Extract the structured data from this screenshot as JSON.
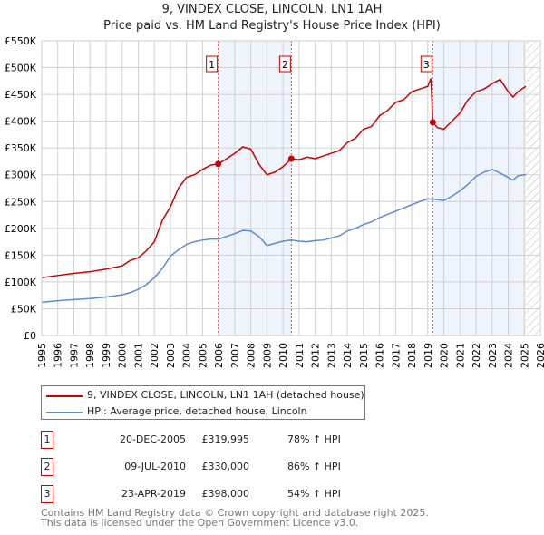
{
  "title": "9, VINDEX CLOSE, LINCOLN, LN1 1AH",
  "subtitle": "Price paid vs. HM Land Registry's House Price Index (HPI)",
  "chart_data": {
    "type": "line",
    "ylim": [
      0,
      550000
    ],
    "xlim": [
      1995,
      2026
    ],
    "yticks": [
      0,
      50000,
      100000,
      150000,
      200000,
      250000,
      300000,
      350000,
      400000,
      450000,
      500000,
      550000
    ],
    "ytick_labels": [
      "£0",
      "£50K",
      "£100K",
      "£150K",
      "£200K",
      "£250K",
      "£300K",
      "£350K",
      "£400K",
      "£450K",
      "£500K",
      "£550K"
    ],
    "xticks": [
      "1995",
      "1996",
      "1997",
      "1998",
      "1999",
      "2000",
      "2001",
      "2002",
      "2003",
      "2004",
      "2005",
      "2006",
      "2007",
      "2008",
      "2009",
      "2010",
      "2011",
      "2012",
      "2013",
      "2014",
      "2015",
      "2016",
      "2017",
      "2018",
      "2019",
      "2020",
      "2021",
      "2022",
      "2023",
      "2024",
      "2025",
      "2026"
    ],
    "series": [
      {
        "name": "9, VINDEX CLOSE, LINCOLN, LN1 1AH (detached house)",
        "color": "#cc0000",
        "x": [
          1995,
          1996,
          1997,
          1998,
          1999,
          2000,
          2000.5,
          2001,
          2001.5,
          2002,
          2002.5,
          2003,
          2003.5,
          2004,
          2004.5,
          2005,
          2005.5,
          2005.97,
          2006.5,
          2007,
          2007.5,
          2008,
          2008.5,
          2009,
          2009.5,
          2010,
          2010.52,
          2011,
          2011.5,
          2012,
          2012.5,
          2013,
          2013.5,
          2014,
          2014.5,
          2015,
          2015.5,
          2016,
          2016.5,
          2017,
          2017.5,
          2018,
          2018.5,
          2019,
          2019.2,
          2019.31,
          2019.6,
          2020,
          2020.5,
          2021,
          2021.5,
          2022,
          2022.5,
          2023,
          2023.5,
          2024,
          2024.3,
          2024.6,
          2025,
          2025.1
        ],
        "y": [
          108000,
          112000,
          116000,
          119000,
          124000,
          130000,
          140000,
          145000,
          158000,
          175000,
          215000,
          240000,
          275000,
          295000,
          300000,
          310000,
          318000,
          319995,
          330000,
          340000,
          352000,
          348000,
          320000,
          300000,
          305000,
          315000,
          330000,
          328000,
          333000,
          330000,
          335000,
          340000,
          345000,
          360000,
          368000,
          385000,
          390000,
          410000,
          420000,
          435000,
          440000,
          455000,
          460000,
          465000,
          480000,
          398000,
          388000,
          385000,
          400000,
          415000,
          440000,
          455000,
          460000,
          470000,
          478000,
          455000,
          445000,
          455000,
          463000,
          465000
        ]
      },
      {
        "name": "HPI: Average price, detached house, Lincoln",
        "color": "#5b8bd0",
        "x": [
          1995,
          1996,
          1997,
          1998,
          1999,
          2000,
          2000.5,
          2001,
          2001.5,
          2002,
          2002.5,
          2003,
          2003.5,
          2004,
          2004.5,
          2005,
          2005.5,
          2006,
          2006.5,
          2007,
          2007.5,
          2008,
          2008.5,
          2009,
          2009.5,
          2010,
          2010.5,
          2011,
          2011.5,
          2012,
          2012.5,
          2013,
          2013.5,
          2014,
          2014.5,
          2015,
          2015.5,
          2016,
          2016.5,
          2017,
          2017.5,
          2018,
          2018.5,
          2019,
          2019.5,
          2020,
          2020.5,
          2021,
          2021.5,
          2022,
          2022.5,
          2023,
          2023.5,
          2024,
          2024.3,
          2024.6,
          2025,
          2025.1
        ],
        "y": [
          62000,
          65000,
          67000,
          69000,
          72000,
          76000,
          80000,
          86000,
          95000,
          108000,
          125000,
          148000,
          160000,
          170000,
          175000,
          178000,
          180000,
          180000,
          185000,
          190000,
          196000,
          195000,
          185000,
          168000,
          172000,
          176000,
          178000,
          176000,
          175000,
          177000,
          178000,
          182000,
          186000,
          195000,
          200000,
          207000,
          212000,
          220000,
          226000,
          232000,
          238000,
          244000,
          250000,
          255000,
          254000,
          252000,
          260000,
          270000,
          282000,
          297000,
          305000,
          310000,
          303000,
          295000,
          290000,
          298000,
          300000,
          300000
        ]
      }
    ],
    "sales": [
      {
        "n": "1",
        "x": 2005.97,
        "y": 319995
      },
      {
        "n": "2",
        "x": 2010.52,
        "y": 330000
      },
      {
        "n": "3",
        "x": 2019.31,
        "y": 398000
      }
    ],
    "shaded": [
      [
        2005.97,
        2010.52
      ],
      [
        2019.31,
        2025.1
      ]
    ],
    "hatched_from": 2025.1
  },
  "legend": [
    {
      "label": "9, VINDEX CLOSE, LINCOLN, LN1 1AH (detached house)",
      "color": "#cc0000"
    },
    {
      "label": "HPI: Average price, detached house, Lincoln",
      "color": "#5b8bd0"
    }
  ],
  "transactions": [
    {
      "n": "1",
      "date": "20-DEC-2005",
      "price": "£319,995",
      "hpi": "78% ↑ HPI"
    },
    {
      "n": "2",
      "date": "09-JUL-2010",
      "price": "£330,000",
      "hpi": "86% ↑ HPI"
    },
    {
      "n": "3",
      "date": "23-APR-2019",
      "price": "£398,000",
      "hpi": "54% ↑ HPI"
    }
  ],
  "footer": [
    "Contains HM Land Registry data © Crown copyright and database right 2025.",
    "This data is licensed under the Open Government Licence v3.0."
  ]
}
